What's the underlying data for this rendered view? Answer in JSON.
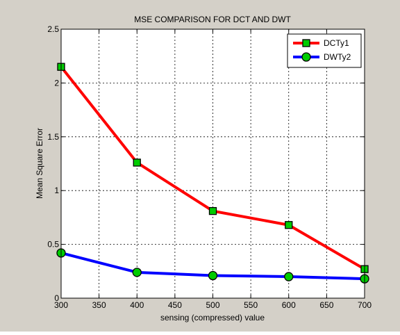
{
  "window": {
    "background": "#d4d0c8"
  },
  "chart_data": {
    "type": "line",
    "title": "MSE COMPARISON FOR DCT AND DWT",
    "xlabel": "sensing (compressed) value",
    "ylabel": "Mean Square Error",
    "xlim": [
      300,
      700
    ],
    "ylim": [
      0,
      2.5
    ],
    "xticks": [
      300,
      350,
      400,
      450,
      500,
      550,
      600,
      650,
      700
    ],
    "yticks": [
      0,
      0.5,
      1,
      1.5,
      2,
      2.5
    ],
    "ytick_labels": [
      "0",
      "0.5",
      "1",
      "1.5",
      "2",
      "2.5"
    ],
    "grid": true,
    "legend_position": "top-right",
    "series": [
      {
        "name": "DCTy1",
        "x": [
          300,
          400,
          500,
          600,
          700
        ],
        "y": [
          2.15,
          1.26,
          0.81,
          0.68,
          0.27
        ],
        "color": "#ff0000",
        "marker": "square",
        "marker_fill": "#00cc00"
      },
      {
        "name": "DWTy2",
        "x": [
          300,
          400,
          500,
          600,
          700
        ],
        "y": [
          0.42,
          0.24,
          0.21,
          0.2,
          0.18
        ],
        "color": "#0000ff",
        "marker": "circle",
        "marker_fill": "#00cc00"
      }
    ]
  }
}
